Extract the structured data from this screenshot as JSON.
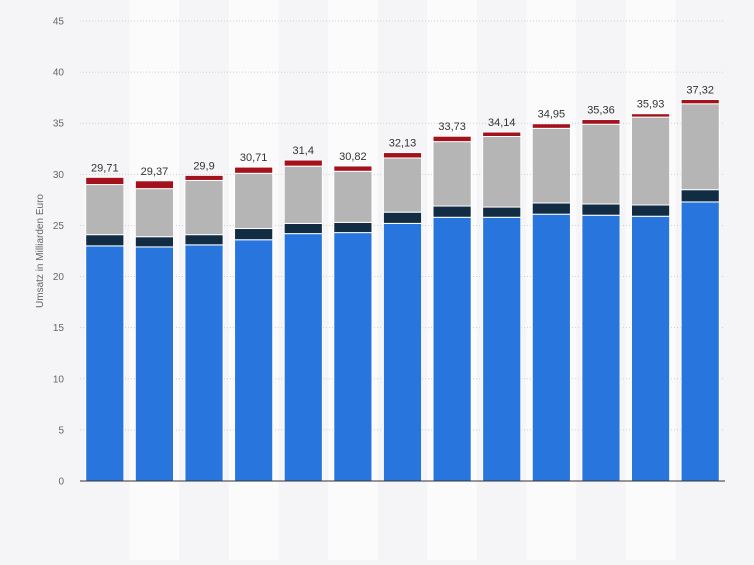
{
  "chart_data": {
    "type": "bar",
    "stacked": true,
    "title": "",
    "xlabel": "",
    "ylabel": "Umsatz in Milliarden Euro",
    "ylim": [
      0,
      45
    ],
    "yticks": [
      0,
      5,
      10,
      15,
      20,
      25,
      30,
      35,
      40,
      45
    ],
    "grid": true,
    "categories": [
      "",
      "",
      "",
      "",
      "",
      "",
      "",
      "",
      "",
      "",
      "",
      "",
      ""
    ],
    "series": [
      {
        "values": [
          23.0,
          22.9,
          23.1,
          23.6,
          24.2,
          24.3,
          25.2,
          25.8,
          25.8,
          26.1,
          26.0,
          25.9,
          27.3
        ]
      },
      {
        "values": [
          1.1,
          1.0,
          1.0,
          1.1,
          1.0,
          1.0,
          1.1,
          1.1,
          1.0,
          1.1,
          1.1,
          1.1,
          1.2
        ]
      },
      {
        "values": [
          4.9,
          4.7,
          5.3,
          5.4,
          5.6,
          5.0,
          5.3,
          6.3,
          6.9,
          7.3,
          7.8,
          8.6,
          8.4
        ]
      },
      {
        "values": [
          0.71,
          0.77,
          0.5,
          0.61,
          0.6,
          0.52,
          0.53,
          0.53,
          0.44,
          0.45,
          0.46,
          0.33,
          0.42
        ]
      }
    ],
    "totals": [
      "29,71",
      "29,37",
      "29,9",
      "30,71",
      "31,4",
      "30,82",
      "32,13",
      "33,73",
      "34,14",
      "34,95",
      "35,36",
      "35,93",
      "37,32"
    ],
    "colors": [
      "#2876dd",
      "#122c44",
      "#b5b5b5",
      "#a3121c"
    ]
  }
}
